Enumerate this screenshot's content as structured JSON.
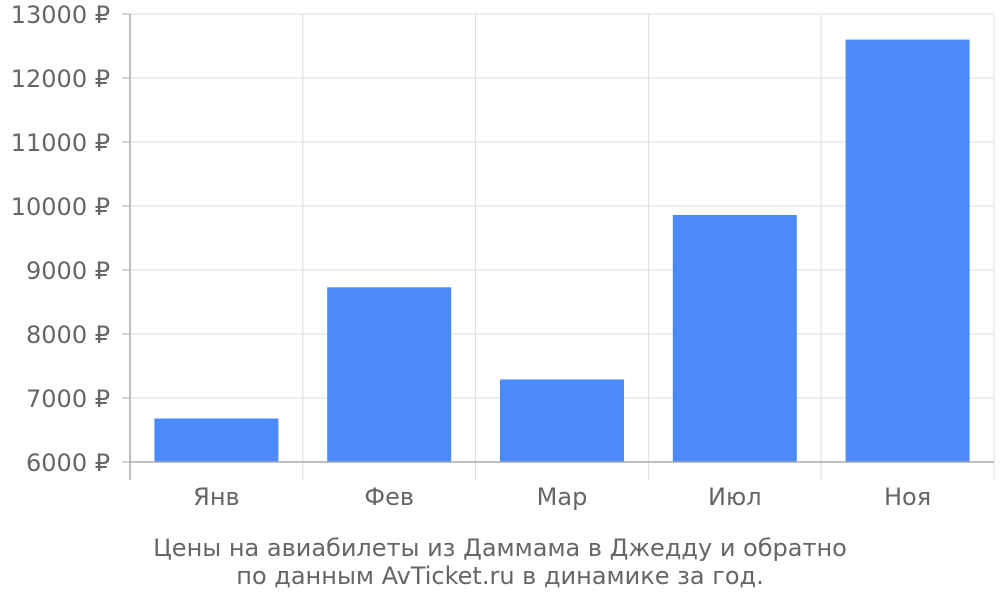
{
  "chart_data": {
    "type": "bar",
    "categories": [
      "Янв",
      "Фев",
      "Мар",
      "Июл",
      "Ноя"
    ],
    "values": [
      6680,
      8730,
      7290,
      9860,
      12600
    ],
    "y_ticks": [
      "6000 ₽",
      "7000 ₽",
      "8000 ₽",
      "9000 ₽",
      "10000 ₽",
      "11000 ₽",
      "12000 ₽",
      "13000 ₽"
    ],
    "ylim": [
      6000,
      13000
    ],
    "grid": true,
    "bar_color": "#4d8af9",
    "grid_color": "#dddddd",
    "axis_color": "#aaaaaa",
    "text_color": "#666666",
    "caption": [
      "Цены на авиабилеты из Даммама в Джедду и обратно",
      "по данным AvTicket.ru в динамике за год."
    ]
  }
}
